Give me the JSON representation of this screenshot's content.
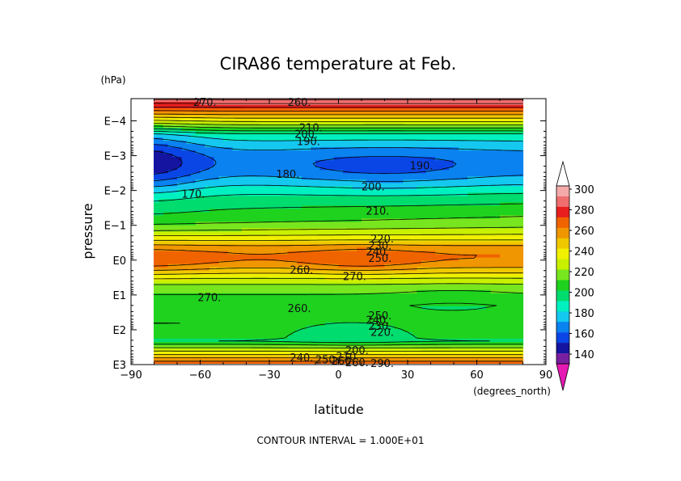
{
  "chart_data": {
    "type": "heatmap",
    "title": "CIRA86 temperature at Feb.",
    "xlabel": "latitude",
    "ylabel": "pressure",
    "x_units": "(degrees_north)",
    "y_units": "(hPa)",
    "xlim": [
      -90,
      90
    ],
    "x_ticks": [
      -90,
      -60,
      -30,
      0,
      30,
      60,
      90
    ],
    "x_tick_labels": [
      "−90",
      "−60",
      "−30",
      "0",
      "30",
      "60",
      "90"
    ],
    "y_scale": "log",
    "y_ticks": [
      1000,
      100,
      10,
      1,
      0.1,
      0.01,
      0.001,
      0.0001
    ],
    "y_tick_labels": [
      "E3",
      "E2",
      "E1",
      "E0",
      "E−1",
      "E−2",
      "E−3",
      "E−4"
    ],
    "contour_interval_text": "CONTOUR INTERVAL = 1.000E+01",
    "colorbar": {
      "levels": [
        140,
        160,
        180,
        200,
        220,
        240,
        260,
        280,
        300
      ],
      "tick_labels": [
        "140",
        "160",
        "180",
        "200",
        "220",
        "240",
        "260",
        "280",
        "300"
      ],
      "colors": [
        "#bf4ab3",
        "#7a1fa0",
        "#1414a0",
        "#0a46e6",
        "#0a82f0",
        "#14c8f0",
        "#00f0c0",
        "#00dc6e",
        "#1ed21e",
        "#78e61e",
        "#c8f000",
        "#f0f000",
        "#f0c800",
        "#f09600",
        "#f06400",
        "#e61e1e",
        "#f06e6e",
        "#f5aaaa",
        "#ffffff"
      ],
      "under_color": "#e619b4",
      "over_color": "#ffffff"
    },
    "labeled_contours": [
      {
        "lat": -58,
        "p": 3e-05,
        "label": "270."
      },
      {
        "lat": -17,
        "p": 3e-05,
        "label": "260."
      },
      {
        "lat": -12,
        "p": 0.00016,
        "label": "210."
      },
      {
        "lat": -14,
        "p": 0.00025,
        "label": "200."
      },
      {
        "lat": -13,
        "p": 0.0004,
        "label": "190."
      },
      {
        "lat": -22,
        "p": 0.0035,
        "label": "180."
      },
      {
        "lat": -63,
        "p": 0.013,
        "label": "170."
      },
      {
        "lat": 36,
        "p": 0.002,
        "label": "190."
      },
      {
        "lat": 15,
        "p": 0.008,
        "label": "200."
      },
      {
        "lat": 17,
        "p": 0.04,
        "label": "210."
      },
      {
        "lat": 19,
        "p": 0.25,
        "label": "220."
      },
      {
        "lat": 18,
        "p": 0.4,
        "label": "230."
      },
      {
        "lat": 17,
        "p": 0.6,
        "label": "240."
      },
      {
        "lat": 18,
        "p": 0.9,
        "label": "250."
      },
      {
        "lat": -16,
        "p": 2.0,
        "label": "260."
      },
      {
        "lat": 7,
        "p": 3.0,
        "label": "270."
      },
      {
        "lat": -56,
        "p": 12,
        "label": "270."
      },
      {
        "lat": -17,
        "p": 25,
        "label": "260."
      },
      {
        "lat": 18,
        "p": 40,
        "label": "250."
      },
      {
        "lat": 17,
        "p": 55,
        "label": "240."
      },
      {
        "lat": 18,
        "p": 80,
        "label": "230."
      },
      {
        "lat": 19,
        "p": 120,
        "label": "220."
      },
      {
        "lat": 8,
        "p": 400,
        "label": "200."
      },
      {
        "lat": 4,
        "p": 600,
        "label": "210."
      },
      {
        "lat": -16,
        "p": 650,
        "label": "240."
      },
      {
        "lat": -5,
        "p": 750,
        "label": "250."
      },
      {
        "lat": 2,
        "p": 800,
        "label": "260."
      },
      {
        "lat": 8,
        "p": 900,
        "label": "260."
      },
      {
        "lat": 19,
        "p": 950,
        "label": "290."
      }
    ]
  }
}
